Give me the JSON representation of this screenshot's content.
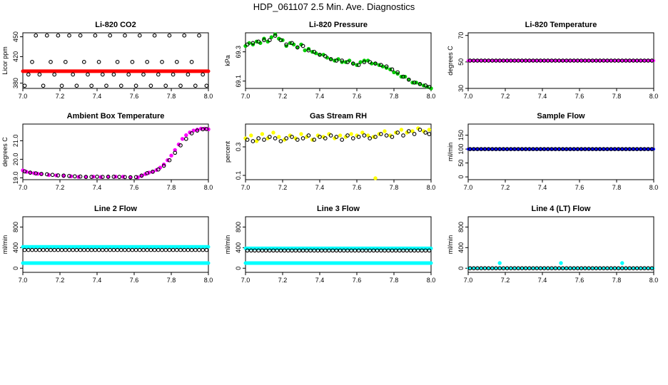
{
  "title": "HDP_061107  2.5 Min. Ave. Diagnostics",
  "chart_data": [
    {
      "id": "co2",
      "type": "scatter",
      "title": "Li-820 CO2",
      "xlabel": "",
      "ylabel": "Licor ppm",
      "xlim": [
        7.0,
        8.0
      ],
      "ylim": [
        372,
        456
      ],
      "xticks": [
        "7.0",
        "7.2",
        "7.4",
        "7.6",
        "7.8",
        "8.0"
      ],
      "yticks": [
        "380",
        "420",
        "450"
      ],
      "series": [
        {
          "name": "raw",
          "kind": "band",
          "color": "#ff0000",
          "x": [
            7.0,
            8.0
          ],
          "y": [
            398,
            398
          ],
          "width": 5
        },
        {
          "name": "avg",
          "kind": "open",
          "color": "#000000",
          "x": [
            7.01,
            7.03,
            7.05,
            7.07,
            7.09,
            7.11,
            7.13,
            7.15,
            7.17,
            7.19,
            7.21,
            7.23,
            7.25,
            7.27,
            7.29,
            7.31,
            7.33,
            7.35,
            7.37,
            7.39,
            7.41,
            7.43,
            7.45,
            7.47,
            7.49,
            7.51,
            7.53,
            7.55,
            7.57,
            7.59,
            7.61,
            7.63,
            7.65,
            7.67,
            7.69,
            7.71,
            7.73,
            7.75,
            7.77,
            7.79,
            7.81,
            7.83,
            7.85,
            7.87,
            7.89,
            7.91,
            7.93,
            7.95,
            7.97,
            7.99
          ],
          "y": [
            376,
            393,
            412,
            452,
            393,
            376,
            452,
            412,
            393,
            452,
            376,
            412,
            452,
            393,
            376,
            452,
            412,
            393,
            376,
            452,
            412,
            393,
            376,
            452,
            393,
            412,
            376,
            452,
            393,
            412,
            376,
            452,
            393,
            412,
            376,
            452,
            393,
            412,
            376,
            452,
            393,
            412,
            376,
            452,
            393,
            412,
            376,
            452,
            393,
            376
          ]
        }
      ]
    },
    {
      "id": "pressure",
      "type": "scatter",
      "title": "Li-820 Pressure",
      "xlabel": "",
      "ylabel": "kPa",
      "xlim": [
        7.0,
        8.0
      ],
      "ylim": [
        69.05,
        69.43
      ],
      "xticks": [
        "7.0",
        "7.2",
        "7.4",
        "7.6",
        "7.8",
        "8.0"
      ],
      "yticks": [
        "69.1",
        "69.3"
      ],
      "series": [
        {
          "name": "raw",
          "kind": "filled",
          "color": "#00cc00",
          "x": [
            7.0,
            7.02,
            7.04,
            7.06,
            7.08,
            7.1,
            7.12,
            7.14,
            7.16,
            7.18,
            7.2,
            7.22,
            7.24,
            7.26,
            7.28,
            7.3,
            7.32,
            7.34,
            7.36,
            7.38,
            7.4,
            7.42,
            7.44,
            7.46,
            7.48,
            7.5,
            7.52,
            7.54,
            7.56,
            7.58,
            7.6,
            7.62,
            7.64,
            7.66,
            7.68,
            7.7,
            7.72,
            7.74,
            7.76,
            7.78,
            7.8,
            7.82,
            7.84,
            7.86,
            7.88,
            7.9,
            7.92,
            7.94,
            7.96,
            7.98,
            8.0
          ],
          "y": [
            69.34,
            69.36,
            69.35,
            69.37,
            69.36,
            69.39,
            69.37,
            69.4,
            69.42,
            69.39,
            69.38,
            69.34,
            69.36,
            69.35,
            69.33,
            69.35,
            69.31,
            69.32,
            69.3,
            69.29,
            69.28,
            69.28,
            69.26,
            69.25,
            69.24,
            69.25,
            69.23,
            69.23,
            69.24,
            69.22,
            69.21,
            69.23,
            69.24,
            69.24,
            69.22,
            69.22,
            69.21,
            69.2,
            69.19,
            69.18,
            69.16,
            69.15,
            69.13,
            69.13,
            69.11,
            69.09,
            69.09,
            69.08,
            69.07,
            69.06,
            69.05
          ]
        },
        {
          "name": "avg",
          "kind": "open",
          "color": "#000000",
          "x": [
            7.01,
            7.04,
            7.07,
            7.1,
            7.13,
            7.16,
            7.19,
            7.22,
            7.25,
            7.28,
            7.31,
            7.34,
            7.37,
            7.4,
            7.43,
            7.46,
            7.49,
            7.52,
            7.55,
            7.58,
            7.61,
            7.64,
            7.67,
            7.7,
            7.73,
            7.76,
            7.79,
            7.82,
            7.85,
            7.88,
            7.91,
            7.94,
            7.97,
            7.99
          ],
          "y": [
            69.35,
            69.36,
            69.37,
            69.38,
            69.38,
            69.41,
            69.38,
            69.35,
            69.36,
            69.33,
            69.34,
            69.31,
            69.3,
            69.28,
            69.27,
            69.25,
            69.24,
            69.24,
            69.23,
            69.22,
            69.21,
            69.23,
            69.23,
            69.22,
            69.21,
            69.2,
            69.18,
            69.16,
            69.13,
            69.11,
            69.09,
            69.08,
            69.07,
            69.06
          ]
        }
      ]
    },
    {
      "id": "temp",
      "type": "scatter",
      "title": "Li-820 Temperature",
      "xlabel": "",
      "ylabel": "degrees C",
      "xlim": [
        7.0,
        8.0
      ],
      "ylim": [
        30,
        72
      ],
      "xticks": [
        "7.0",
        "7.2",
        "7.4",
        "7.6",
        "7.8",
        "8.0"
      ],
      "yticks": [
        "30",
        "50",
        "70"
      ],
      "series": [
        {
          "name": "raw",
          "kind": "band",
          "color": "#ff00ff",
          "x": [
            7.0,
            8.0
          ],
          "y": [
            51,
            51
          ],
          "width": 4
        },
        {
          "name": "avg",
          "kind": "open",
          "color": "#000000",
          "step": 0.02,
          "x": [
            7.01,
            7.99
          ],
          "y": [
            51,
            51
          ]
        }
      ]
    },
    {
      "id": "ambient",
      "type": "scatter",
      "title": "Ambient Box Temperature",
      "xlabel": "",
      "ylabel": "degrees C",
      "xlim": [
        7.0,
        8.0
      ],
      "ylim": [
        18.9,
        21.9
      ],
      "xticks": [
        "7.0",
        "7.2",
        "7.4",
        "7.6",
        "7.8",
        "8.0"
      ],
      "yticks": [
        "19.0",
        "20.0",
        "21.0"
      ],
      "series": [
        {
          "name": "raw",
          "kind": "filled",
          "color": "#ff00ff",
          "x": [
            7.0,
            7.02,
            7.04,
            7.06,
            7.08,
            7.1,
            7.14,
            7.18,
            7.22,
            7.26,
            7.3,
            7.34,
            7.38,
            7.42,
            7.46,
            7.5,
            7.54,
            7.58,
            7.62,
            7.64,
            7.66,
            7.68,
            7.7,
            7.72,
            7.74,
            7.76,
            7.78,
            7.8,
            7.82,
            7.84,
            7.86,
            7.88,
            7.9,
            7.92,
            7.94,
            7.96,
            7.98,
            8.0
          ],
          "y": [
            19.4,
            19.32,
            19.28,
            19.25,
            19.22,
            19.2,
            19.15,
            19.13,
            19.1,
            19.08,
            19.05,
            19.05,
            19.06,
            19.04,
            19.05,
            19.06,
            19.06,
            19.03,
            19.03,
            19.1,
            19.2,
            19.28,
            19.32,
            19.42,
            19.55,
            19.72,
            19.95,
            20.2,
            20.5,
            20.8,
            21.1,
            21.3,
            21.45,
            21.55,
            21.6,
            21.65,
            21.65,
            21.62
          ]
        },
        {
          "name": "avg",
          "kind": "open",
          "color": "#000000",
          "x": [
            7.01,
            7.04,
            7.07,
            7.1,
            7.13,
            7.16,
            7.19,
            7.22,
            7.25,
            7.28,
            7.31,
            7.34,
            7.37,
            7.4,
            7.43,
            7.46,
            7.49,
            7.52,
            7.55,
            7.58,
            7.61,
            7.64,
            7.67,
            7.7,
            7.73,
            7.76,
            7.79,
            7.82,
            7.85,
            7.88,
            7.91,
            7.94,
            7.97,
            7.99
          ],
          "y": [
            19.35,
            19.28,
            19.24,
            19.21,
            19.19,
            19.16,
            19.13,
            19.12,
            19.1,
            19.08,
            19.07,
            19.05,
            19.05,
            19.06,
            19.05,
            19.06,
            19.06,
            19.05,
            19.04,
            19.03,
            19.04,
            19.12,
            19.25,
            19.33,
            19.45,
            19.65,
            19.95,
            20.35,
            20.75,
            21.1,
            21.4,
            21.55,
            21.62,
            21.63
          ]
        }
      ]
    },
    {
      "id": "rh",
      "type": "scatter",
      "title": "Gas Stream RH",
      "xlabel": "",
      "ylabel": "percent",
      "xlim": [
        7.0,
        8.0
      ],
      "ylim": [
        0.07,
        0.46
      ],
      "xticks": [
        "7.0",
        "7.2",
        "7.4",
        "7.6",
        "7.8",
        "8.0"
      ],
      "yticks": [
        "0.1",
        "0.3"
      ],
      "series": [
        {
          "name": "raw",
          "kind": "filled",
          "color": "#ffff00",
          "x": [
            7.0,
            7.03,
            7.06,
            7.09,
            7.12,
            7.15,
            7.18,
            7.21,
            7.24,
            7.27,
            7.3,
            7.33,
            7.36,
            7.39,
            7.42,
            7.45,
            7.48,
            7.51,
            7.54,
            7.57,
            7.6,
            7.63,
            7.66,
            7.69,
            7.7,
            7.72,
            7.75,
            7.78,
            7.81,
            7.84,
            7.87,
            7.9,
            7.93,
            7.96,
            7.99
          ],
          "y": [
            0.36,
            0.38,
            0.34,
            0.39,
            0.36,
            0.4,
            0.37,
            0.35,
            0.38,
            0.36,
            0.39,
            0.37,
            0.35,
            0.38,
            0.37,
            0.39,
            0.36,
            0.38,
            0.37,
            0.39,
            0.38,
            0.4,
            0.38,
            0.37,
            0.08,
            0.39,
            0.41,
            0.38,
            0.4,
            0.42,
            0.4,
            0.41,
            0.43,
            0.41,
            0.42
          ]
        },
        {
          "name": "avg",
          "kind": "open",
          "color": "#000000",
          "x": [
            7.01,
            7.04,
            7.07,
            7.1,
            7.13,
            7.16,
            7.19,
            7.22,
            7.25,
            7.28,
            7.31,
            7.34,
            7.37,
            7.4,
            7.43,
            7.46,
            7.49,
            7.52,
            7.55,
            7.58,
            7.61,
            7.64,
            7.67,
            7.7,
            7.73,
            7.76,
            7.79,
            7.82,
            7.85,
            7.88,
            7.91,
            7.94,
            7.97,
            7.99
          ],
          "y": [
            0.35,
            0.34,
            0.36,
            0.35,
            0.37,
            0.36,
            0.34,
            0.36,
            0.37,
            0.35,
            0.36,
            0.38,
            0.35,
            0.37,
            0.36,
            0.38,
            0.37,
            0.35,
            0.38,
            0.36,
            0.37,
            0.38,
            0.36,
            0.37,
            0.39,
            0.38,
            0.37,
            0.4,
            0.38,
            0.41,
            0.39,
            0.42,
            0.4,
            0.39
          ]
        }
      ]
    },
    {
      "id": "sampleflow",
      "type": "scatter",
      "title": "Sample Flow",
      "xlabel": "",
      "ylabel": "ml/min",
      "xlim": [
        7.0,
        8.0
      ],
      "ylim": [
        -10,
        190
      ],
      "xticks": [
        "7.0",
        "7.2",
        "7.4",
        "7.6",
        "7.8",
        "8.0"
      ],
      "yticks": [
        "0",
        "50",
        "100",
        "150"
      ],
      "series": [
        {
          "name": "raw",
          "kind": "band",
          "color": "#0000ff",
          "x": [
            7.0,
            8.0
          ],
          "y": [
            100,
            100
          ],
          "width": 4
        },
        {
          "name": "avg",
          "kind": "open",
          "color": "#000000",
          "step": 0.02,
          "x": [
            7.01,
            7.99
          ],
          "y": [
            100,
            100
          ]
        }
      ]
    },
    {
      "id": "line2",
      "type": "scatter",
      "title": "Line 2 Flow",
      "xlabel": "",
      "ylabel": "ml/min",
      "xlim": [
        7.0,
        8.0
      ],
      "ylim": [
        -80,
        1000
      ],
      "xticks": [
        "7.0",
        "7.2",
        "7.4",
        "7.6",
        "7.8",
        "8.0"
      ],
      "yticks": [
        "0",
        "400",
        "800"
      ],
      "series": [
        {
          "name": "raw_hi",
          "kind": "band",
          "color": "#00ffff",
          "x": [
            7.0,
            8.0
          ],
          "y": [
            415,
            415
          ],
          "width": 5
        },
        {
          "name": "raw_lo",
          "kind": "band",
          "color": "#00ffff",
          "x": [
            7.0,
            8.0
          ],
          "y": [
            100,
            100
          ],
          "width": 5
        },
        {
          "name": "avg",
          "kind": "open",
          "color": "#000000",
          "step": 0.02,
          "x": [
            7.01,
            7.99
          ],
          "y": [
            355,
            355
          ]
        }
      ]
    },
    {
      "id": "line3",
      "type": "scatter",
      "title": "Line 3 Flow",
      "xlabel": "",
      "ylabel": "ml/min",
      "xlim": [
        7.0,
        8.0
      ],
      "ylim": [
        -80,
        1000
      ],
      "xticks": [
        "7.0",
        "7.2",
        "7.4",
        "7.6",
        "7.8",
        "8.0"
      ],
      "yticks": [
        "0",
        "400",
        "800"
      ],
      "series": [
        {
          "name": "raw_hi",
          "kind": "band",
          "color": "#00ffff",
          "x": [
            7.0,
            8.0
          ],
          "y": [
            385,
            385
          ],
          "width": 5
        },
        {
          "name": "raw_lo",
          "kind": "band",
          "color": "#00ffff",
          "x": [
            7.0,
            8.0
          ],
          "y": [
            100,
            100
          ],
          "width": 5
        },
        {
          "name": "avg",
          "kind": "open",
          "color": "#000000",
          "step": 0.02,
          "x": [
            7.01,
            7.99
          ],
          "y": [
            345,
            345
          ]
        }
      ]
    },
    {
      "id": "line4",
      "type": "scatter",
      "title": "Line 4 (LT) Flow",
      "xlabel": "",
      "ylabel": "ml/min",
      "xlim": [
        7.0,
        8.0
      ],
      "ylim": [
        -80,
        1000
      ],
      "xticks": [
        "7.0",
        "7.2",
        "7.4",
        "7.6",
        "7.8",
        "8.0"
      ],
      "yticks": [
        "0",
        "400",
        "800"
      ],
      "series": [
        {
          "name": "raw",
          "kind": "band",
          "color": "#00ffff",
          "x": [
            7.0,
            8.0
          ],
          "y": [
            0,
            0
          ],
          "width": 3
        },
        {
          "name": "spikes",
          "kind": "filled",
          "color": "#00ffff",
          "x": [
            7.17,
            7.5,
            7.83
          ],
          "y": [
            100,
            100,
            100
          ]
        },
        {
          "name": "avg",
          "kind": "open",
          "color": "#000000",
          "step": 0.02,
          "x": [
            7.01,
            7.99
          ],
          "y": [
            0,
            0
          ]
        }
      ]
    }
  ]
}
